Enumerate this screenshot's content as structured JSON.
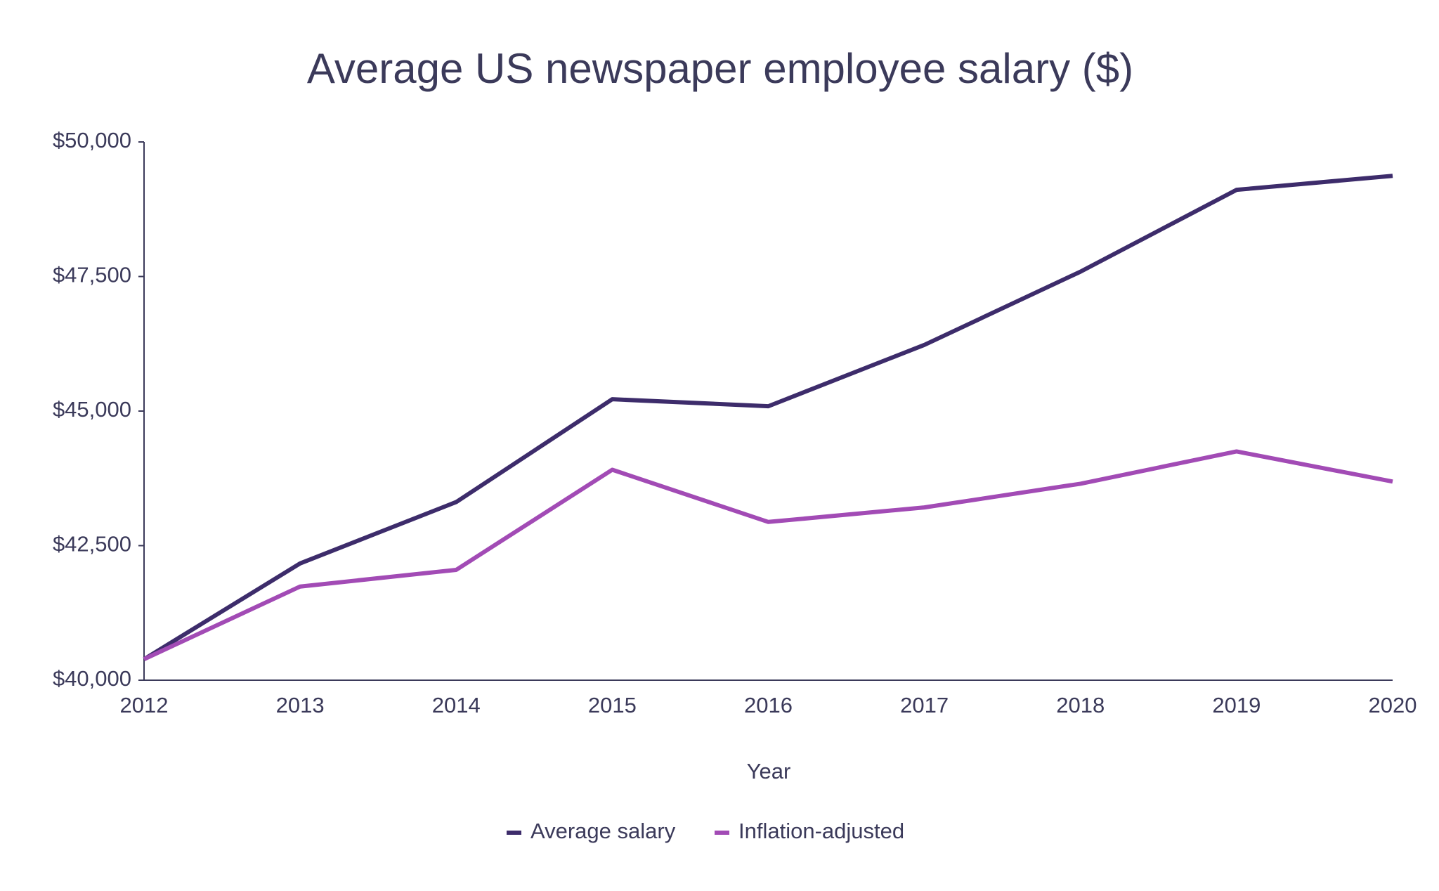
{
  "chart_data": {
    "type": "line",
    "title": "Average US newspaper employee salary ($)",
    "x_label": "Year",
    "x": [
      2012,
      2013,
      2014,
      2015,
      2016,
      2017,
      2018,
      2019,
      2020
    ],
    "xlim": [
      2012,
      2020
    ],
    "xticks": [
      2012,
      2013,
      2014,
      2015,
      2016,
      2017,
      2018,
      2019,
      2020
    ],
    "ylim": [
      40000,
      50000
    ],
    "yticks": [
      {
        "value": 40000,
        "label": "$40,000"
      },
      {
        "value": 42500,
        "label": "$42,500"
      },
      {
        "value": 45000,
        "label": "$45,000"
      },
      {
        "value": 47500,
        "label": "$47,500"
      },
      {
        "value": 50000,
        "label": "$50,000"
      }
    ],
    "grid": false,
    "legend": "bottom",
    "series": [
      {
        "name": "Average salary",
        "color": "#3d2c6b",
        "values": [
          40390,
          42170,
          43310,
          45220,
          45090,
          46230,
          47590,
          49110,
          49370
        ]
      },
      {
        "name": "Inflation-adjusted",
        "color": "#a24bb5",
        "values": [
          40390,
          41740,
          42050,
          43910,
          42940,
          43210,
          43650,
          44250,
          43690
        ]
      }
    ]
  }
}
